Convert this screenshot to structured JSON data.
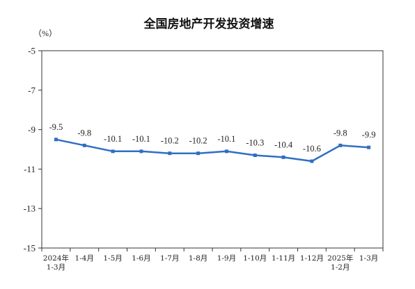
{
  "chart_data": {
    "type": "line",
    "title": "全国房地产开发投资增速",
    "unit_label": "（%）",
    "ylim": [
      -15,
      -5
    ],
    "yticks": [
      -5,
      -7,
      -9,
      -11,
      -13,
      -15
    ],
    "categories": [
      [
        "2024年",
        "1-3月"
      ],
      [
        "1-4月"
      ],
      [
        "1-5月"
      ],
      [
        "1-6月"
      ],
      [
        "1-7月"
      ],
      [
        "1-8月"
      ],
      [
        "1-9月"
      ],
      [
        "1-10月"
      ],
      [
        "1-11月"
      ],
      [
        "1-12月"
      ],
      [
        "2025年",
        "1-2月"
      ],
      [
        "1-3月"
      ]
    ],
    "series": [
      {
        "values": [
          -9.5,
          -9.8,
          -10.1,
          -10.1,
          -10.2,
          -10.2,
          -10.1,
          -10.3,
          -10.4,
          -10.6,
          -9.8,
          -9.9
        ],
        "color": "#2e6fc4"
      }
    ],
    "grid": false,
    "legend": "none"
  }
}
